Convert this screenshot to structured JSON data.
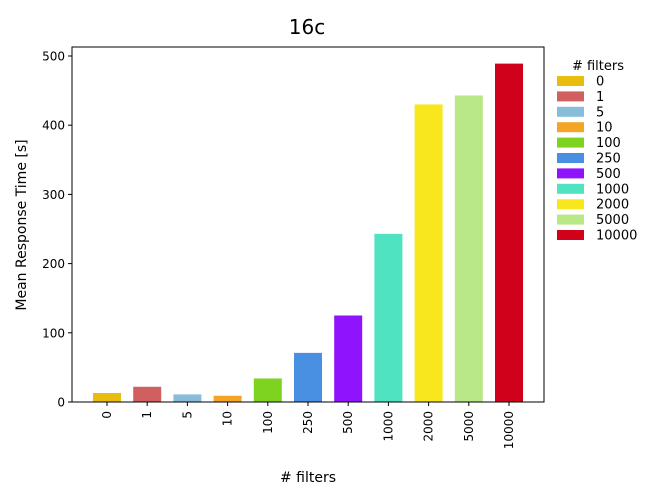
{
  "chart_data": {
    "type": "bar",
    "title": "16c",
    "xlabel": "# filters",
    "ylabel": "Mean Response Time [s]",
    "ylim": [
      0,
      513
    ],
    "yticks": [
      0,
      100,
      200,
      300,
      400,
      500
    ],
    "grid": false,
    "categories": [
      "0",
      "1",
      "5",
      "10",
      "100",
      "250",
      "500",
      "1000",
      "2000",
      "5000",
      "10000"
    ],
    "values": [
      13,
      22,
      11,
      9,
      34,
      71,
      125,
      243,
      430,
      443,
      489
    ],
    "colors": [
      "#e8bd0e",
      "#d15f5f",
      "#87bdd8",
      "#f4a528",
      "#7ed321",
      "#4a90e2",
      "#9013fe",
      "#50e3c2",
      "#f8e71c",
      "#b8e986",
      "#d0021b"
    ],
    "legend": {
      "title": "# filters",
      "placement": "right",
      "entries": [
        "0",
        "1",
        "5",
        "10",
        "100",
        "250",
        "500",
        "1000",
        "2000",
        "5000",
        "10000"
      ]
    }
  }
}
